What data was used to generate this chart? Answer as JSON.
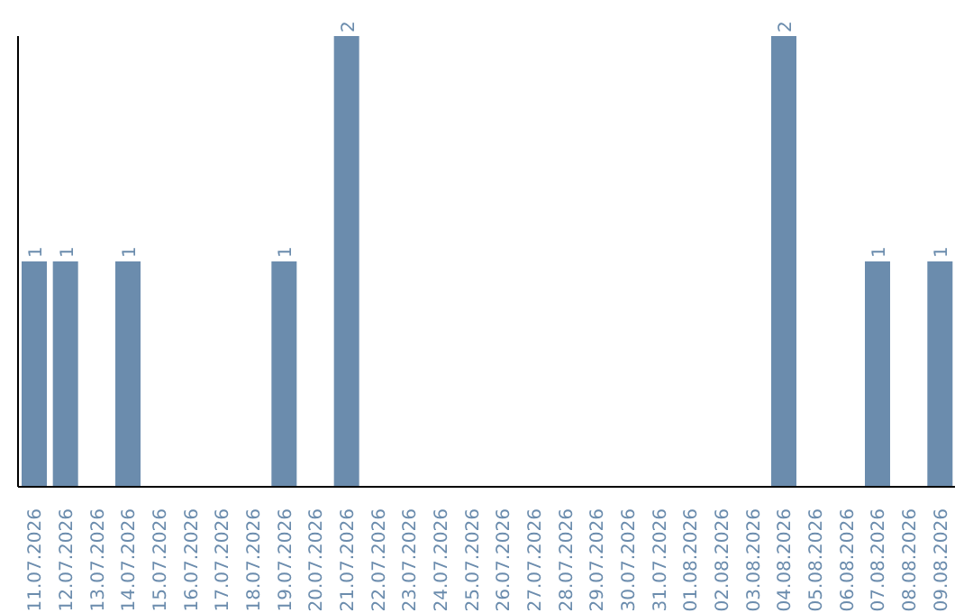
{
  "chart_data": {
    "type": "bar",
    "categories": [
      "11.07.2026",
      "12.07.2026",
      "13.07.2026",
      "14.07.2026",
      "15.07.2026",
      "16.07.2026",
      "17.07.2026",
      "18.07.2026",
      "19.07.2026",
      "20.07.2026",
      "21.07.2026",
      "22.07.2026",
      "23.07.2026",
      "24.07.2026",
      "25.07.2026",
      "26.07.2026",
      "27.07.2026",
      "28.07.2026",
      "29.07.2026",
      "30.07.2026",
      "31.07.2026",
      "01.08.2026",
      "02.08.2026",
      "03.08.2026",
      "04.08.2026",
      "05.08.2026",
      "06.08.2026",
      "07.08.2026",
      "08.08.2026",
      "09.08.2026"
    ],
    "values": [
      1,
      1,
      0,
      1,
      0,
      0,
      0,
      0,
      1,
      0,
      2,
      0,
      0,
      0,
      0,
      0,
      0,
      0,
      0,
      0,
      0,
      0,
      0,
      0,
      2,
      0,
      0,
      1,
      0,
      1
    ],
    "value_labels": [
      "1",
      "1",
      null,
      "1",
      null,
      null,
      null,
      null,
      "1",
      null,
      "2",
      null,
      null,
      null,
      null,
      null,
      null,
      null,
      null,
      null,
      null,
      null,
      null,
      null,
      "2",
      null,
      null,
      "1",
      null,
      "1"
    ],
    "color": "#6b8cad"
  }
}
